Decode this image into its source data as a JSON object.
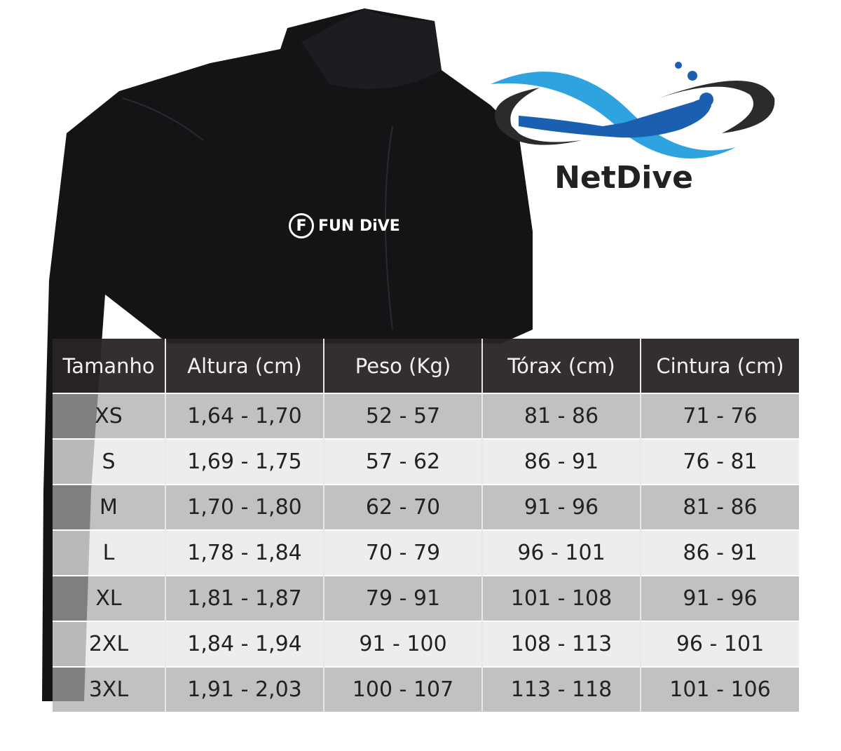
{
  "brand": {
    "name": "NetDive",
    "product_logo_text": "FUN DiVE",
    "colors": {
      "light_blue": "#2ea3e0",
      "dark_blue": "#1a5fb0",
      "dark_gray": "#2b2b2b"
    }
  },
  "size_table": {
    "headers": [
      "Tamanho",
      "Altura (cm)",
      "Peso (Kg)",
      "Tórax (cm)",
      "Cintura (cm)"
    ],
    "rows": [
      [
        "XS",
        "1,64 - 1,70",
        "52 - 57",
        "81 - 86",
        "71 - 76"
      ],
      [
        "S",
        "1,69 - 1,75",
        "57 - 62",
        "86 - 91",
        "76 - 81"
      ],
      [
        "M",
        "1,70 - 1,80",
        "62 - 70",
        "91 - 96",
        "81 - 86"
      ],
      [
        "L",
        "1,78 - 1,84",
        "70 - 79",
        "96 - 101",
        "86 - 91"
      ],
      [
        "XL",
        "1,81 - 1,87",
        "79 - 91",
        "101 - 108",
        "91 - 96"
      ],
      [
        "2XL",
        "1,84 - 1,94",
        "91 - 100",
        "108 - 113",
        "96 - 101"
      ],
      [
        "3XL",
        "1,91 - 2,03",
        "100 - 107",
        "113 - 118",
        "101 - 106"
      ]
    ]
  }
}
